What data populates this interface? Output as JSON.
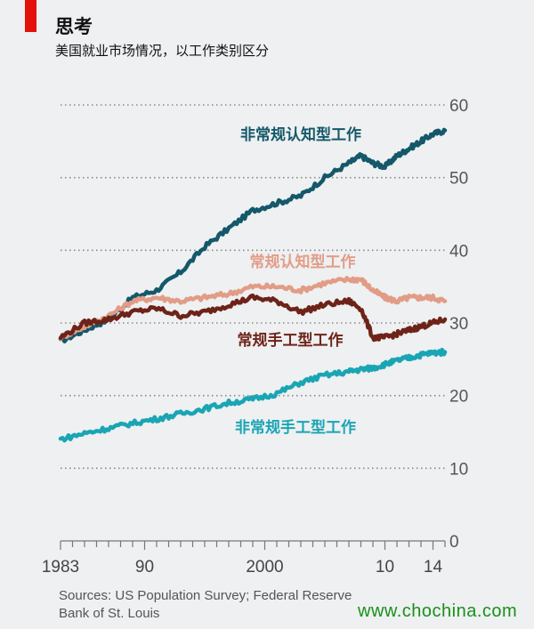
{
  "header": {
    "title": "思考",
    "subtitle": "美国就业市场情况，以工作类别区分"
  },
  "source": {
    "line1": "Sources: US Population Survey; Federal Reserve",
    "line2": "Bank of St. Louis"
  },
  "watermark": "www.chochina.com",
  "chart_data": {
    "type": "line",
    "ylim": [
      0,
      60
    ],
    "xlim": [
      1983,
      2015
    ],
    "y_ticks": [
      0,
      10,
      20,
      30,
      40,
      50,
      60
    ],
    "x_ticks": [
      {
        "value": 1983,
        "label": "1983"
      },
      {
        "value": 1990,
        "label": "90"
      },
      {
        "value": 2000,
        "label": "2000"
      },
      {
        "value": 2010,
        "label": "10"
      },
      {
        "value": 2014,
        "label": "14"
      }
    ],
    "grid": true,
    "series": [
      {
        "name": "非常规认知型工作",
        "color": "#14586a",
        "x": [
          1983,
          1985,
          1987,
          1989,
          1991,
          1993,
          1995,
          1997,
          1999,
          2001,
          2003,
          2005,
          2007,
          2008,
          2009,
          2010,
          2011,
          2012,
          2013,
          2014,
          2015
        ],
        "values": [
          27.5,
          29.0,
          30.5,
          33.5,
          34.5,
          37.0,
          40.5,
          43.0,
          45.5,
          46.5,
          47.5,
          50.0,
          52.0,
          53.0,
          52.0,
          51.5,
          53.0,
          54.0,
          55.0,
          56.0,
          56.5
        ]
      },
      {
        "name": "常规认知型工作",
        "color": "#e29c86",
        "x": [
          1983,
          1985,
          1987,
          1989,
          1991,
          1993,
          1995,
          1997,
          1999,
          2001,
          2003,
          2005,
          2007,
          2008,
          2009,
          2010,
          2011,
          2012,
          2013,
          2014,
          2015
        ],
        "values": [
          28.0,
          29.5,
          31.0,
          33.0,
          33.5,
          33.0,
          33.5,
          34.0,
          35.0,
          35.0,
          34.5,
          35.5,
          36.0,
          36.0,
          34.5,
          33.5,
          33.0,
          33.5,
          33.5,
          33.5,
          33.0
        ]
      },
      {
        "name": "常规手工型工作",
        "color": "#6e2318",
        "x": [
          1983,
          1985,
          1987,
          1989,
          1991,
          1993,
          1995,
          1997,
          1999,
          2001,
          2003,
          2005,
          2007,
          2008,
          2009,
          2010,
          2011,
          2012,
          2013,
          2014,
          2015
        ],
        "values": [
          28.0,
          30.0,
          30.5,
          31.5,
          32.0,
          31.0,
          31.5,
          32.5,
          33.5,
          33.0,
          31.5,
          32.5,
          33.0,
          32.0,
          28.0,
          28.0,
          28.5,
          29.0,
          29.5,
          30.0,
          30.5
        ]
      },
      {
        "name": "非常规手工型工作",
        "color": "#1aa5b4",
        "x": [
          1983,
          1985,
          1987,
          1989,
          1991,
          1993,
          1995,
          1997,
          1999,
          2001,
          2003,
          2005,
          2007,
          2008,
          2009,
          2010,
          2011,
          2012,
          2013,
          2014,
          2015
        ],
        "values": [
          14.0,
          14.8,
          15.5,
          16.2,
          16.8,
          17.5,
          18.2,
          19.0,
          19.5,
          20.3,
          21.8,
          22.8,
          23.3,
          23.6,
          23.8,
          24.3,
          24.8,
          25.2,
          25.6,
          25.9,
          26.0
        ]
      }
    ]
  }
}
